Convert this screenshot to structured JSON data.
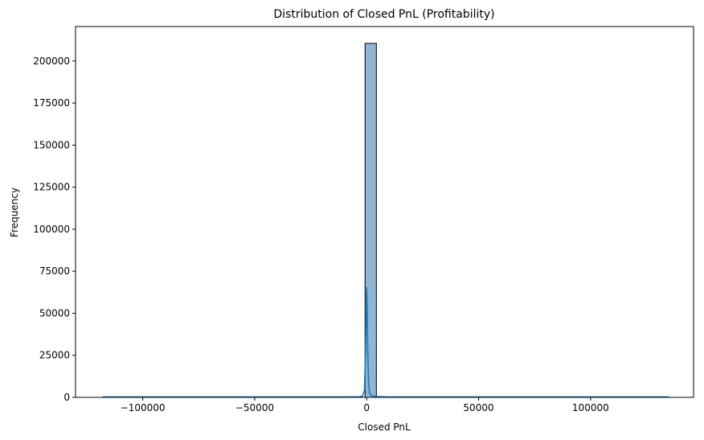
{
  "chart_data": {
    "type": "bar",
    "title": "Distribution of Closed PnL (Profitability)",
    "xlabel": "Closed PnL",
    "ylabel": "Frequency",
    "xlim": [
      -130000,
      146000
    ],
    "ylim": [
      0,
      220500
    ],
    "x_ticks": [
      -100000,
      -50000,
      0,
      50000,
      100000
    ],
    "x_tick_labels": [
      "−100000",
      "−50000",
      "0",
      "50000",
      "100000"
    ],
    "y_ticks": [
      0,
      25000,
      50000,
      75000,
      100000,
      125000,
      150000,
      175000,
      200000
    ],
    "y_tick_labels": [
      "0",
      "25000",
      "50000",
      "75000",
      "100000",
      "125000",
      "150000",
      "175000",
      "200000"
    ],
    "grid": false,
    "bar_color": "#8fb6d5",
    "bar_edge_color": "#000000",
    "kde_color": "#1f77b4",
    "bins": [
      {
        "x0": -700,
        "x1": 4350,
        "count": 210500
      }
    ],
    "kde": {
      "x": [
        -118000,
        -60000,
        -10000,
        -3000,
        -1800,
        -1000,
        -500,
        -200,
        0,
        200,
        500,
        900,
        1300,
        2000,
        3000,
        5000,
        10000,
        60000,
        135000
      ],
      "y": [
        300,
        300,
        300,
        400,
        800,
        4000,
        25000,
        55000,
        65500,
        55000,
        28000,
        8000,
        2500,
        1200,
        700,
        450,
        300,
        300,
        300
      ]
    }
  }
}
